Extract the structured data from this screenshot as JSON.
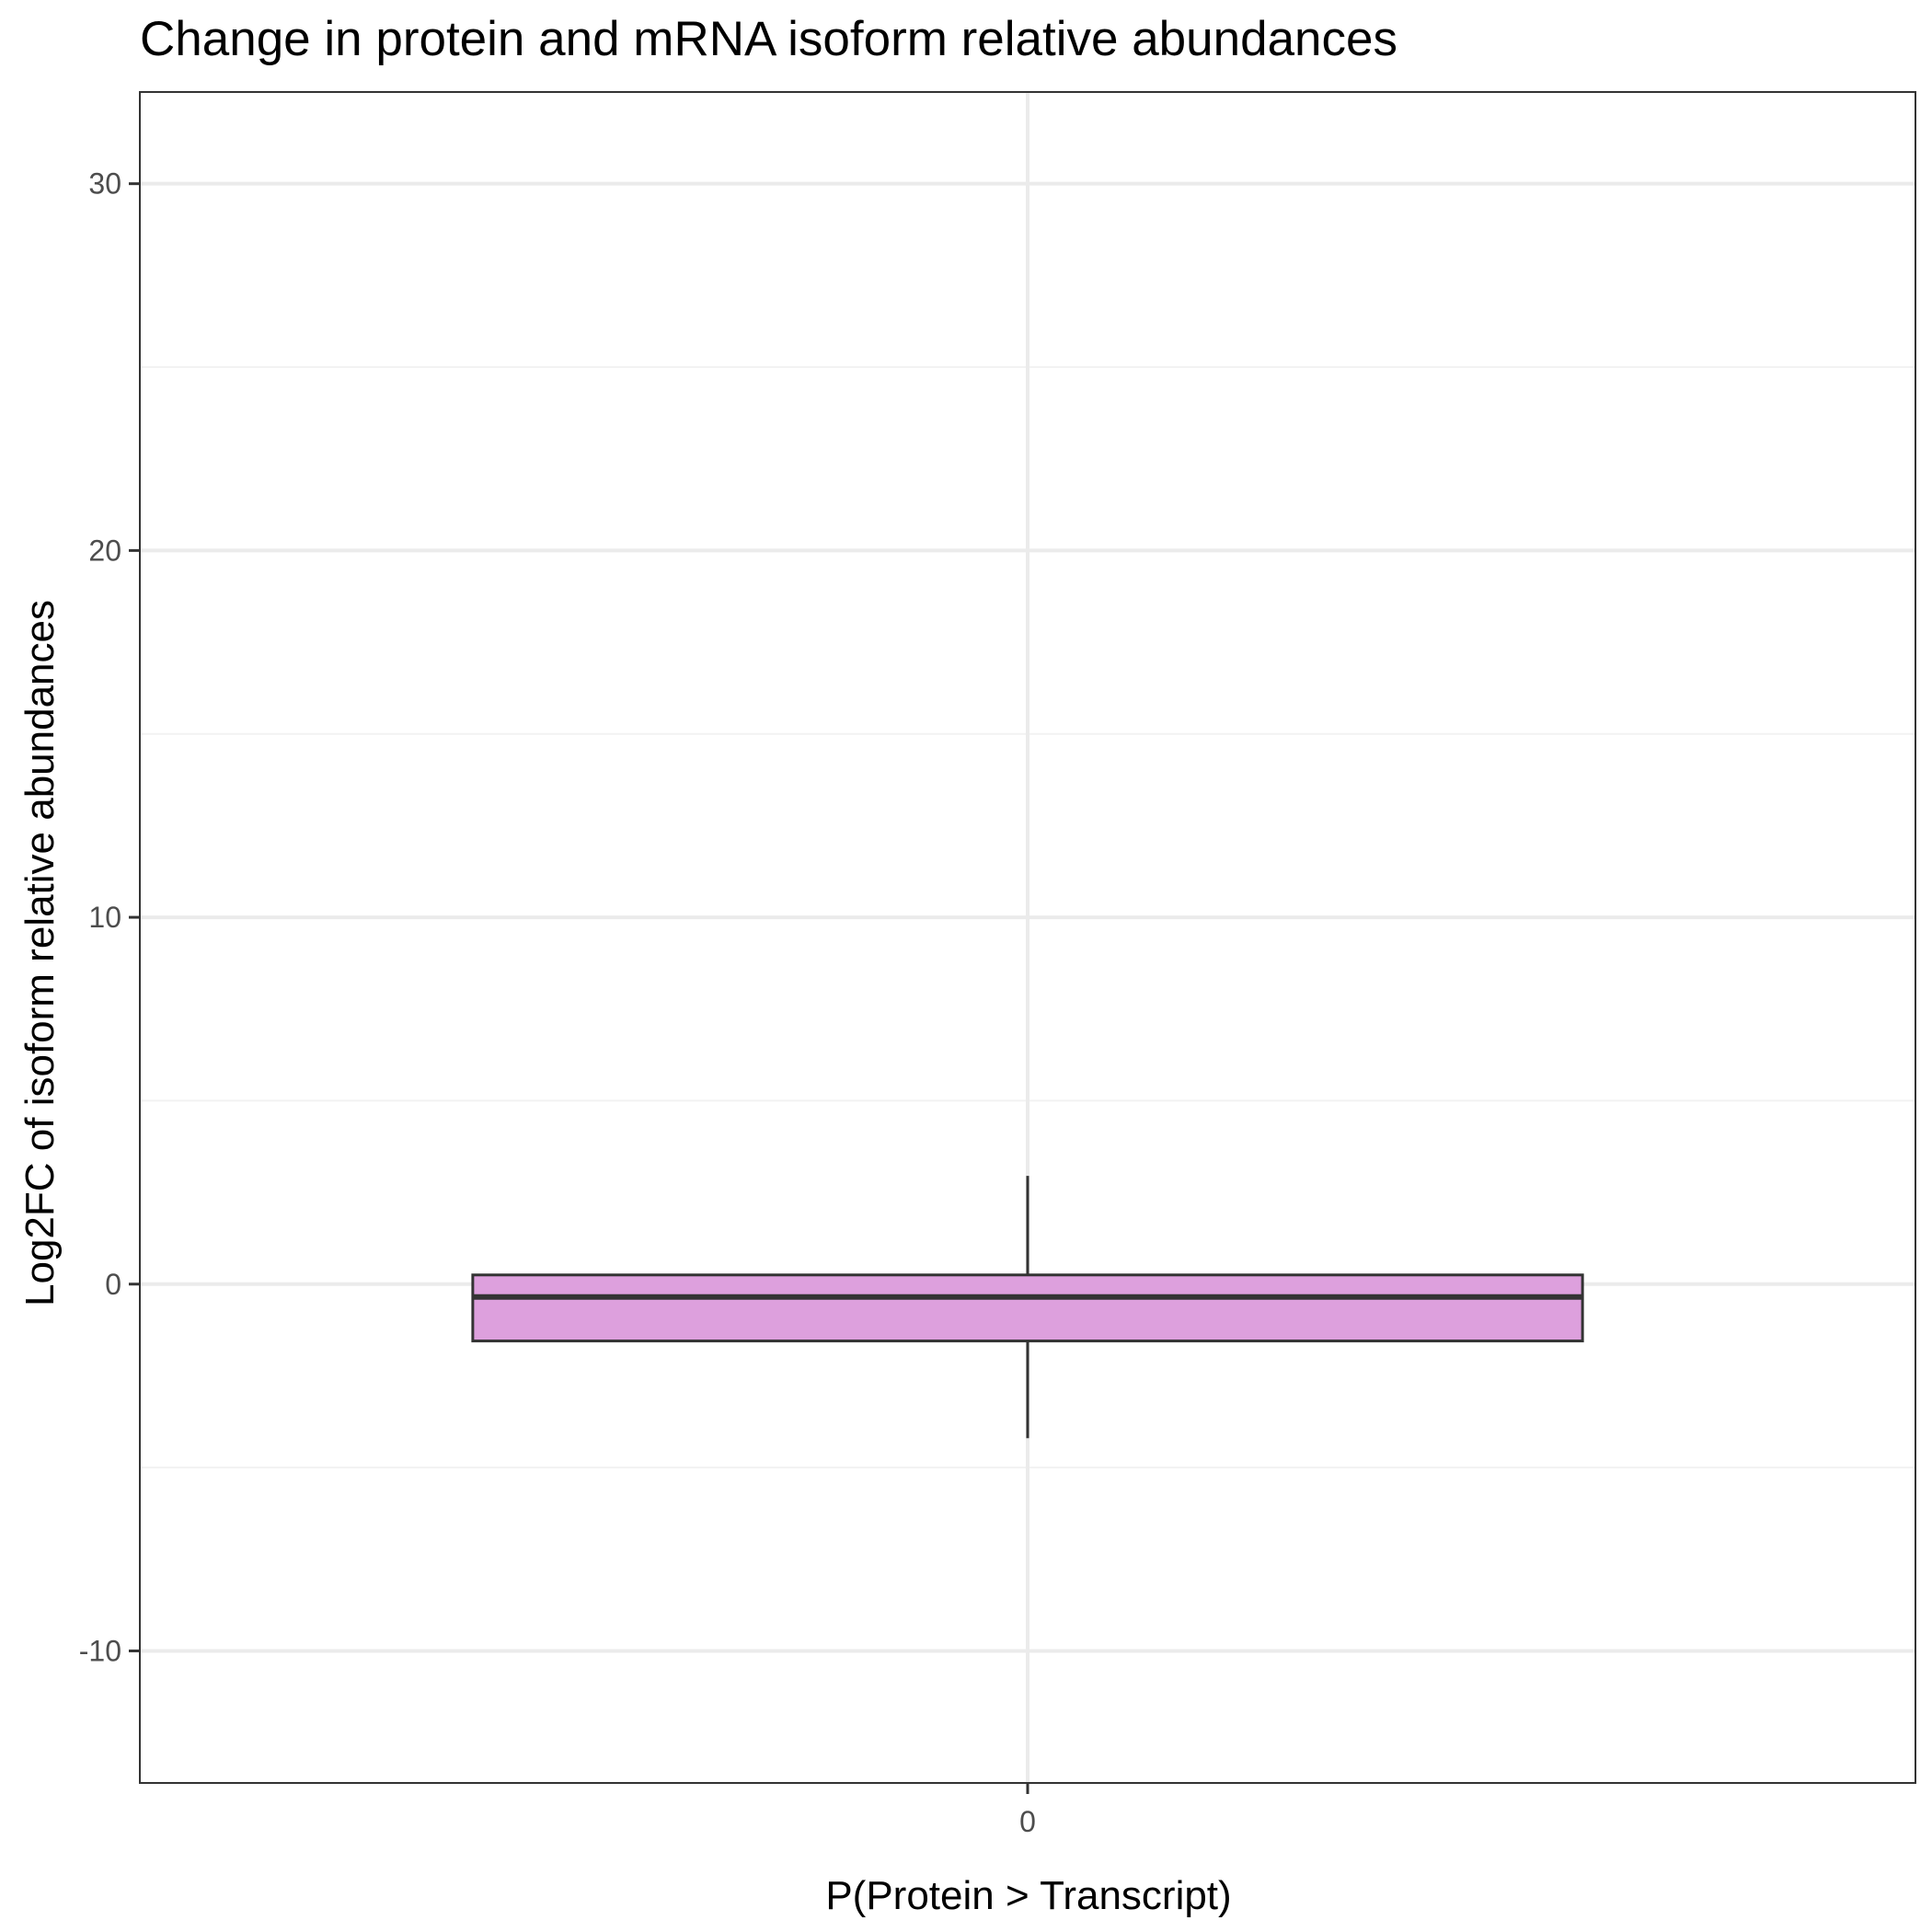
{
  "chart_data": {
    "type": "box",
    "title": "Change in protein and mRNA isoform relative abundances",
    "xlabel": "P(Protein > Transcript)",
    "ylabel": "Log2FC of isoform relative abundances",
    "categories": [
      "0"
    ],
    "series": [
      {
        "category": "0",
        "whisker_low": -4.2,
        "q1": -1.55,
        "median": -0.35,
        "q3": 0.25,
        "whisker_high": 2.95
      }
    ],
    "ylim": [
      -13.6,
      32.5
    ],
    "yticks": [
      -10,
      0,
      10,
      20,
      30
    ],
    "ytick_labels": [
      "-10",
      "0",
      "10",
      "20",
      "30"
    ],
    "grid": true,
    "colors": {
      "box_fill": "#DDA0DD",
      "box_stroke": "#333333",
      "grid_major": "#EBEBEB",
      "grid_minor": "#F2F2F2",
      "panel_border": "#333333"
    }
  }
}
